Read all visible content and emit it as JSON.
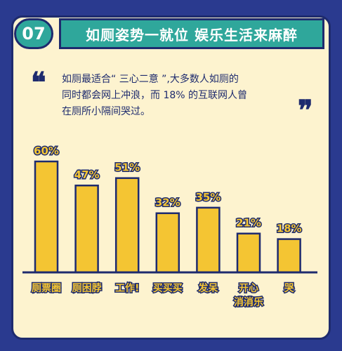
{
  "header": {
    "number": "07",
    "title": "如厕姿势一就位 娱乐生活来麻醉"
  },
  "description": {
    "lines": [
      "如厕最适合“ 三心二意 ”,大多数人如厕的",
      "同时都会网上冲浪，而 18% 的互联网人曾",
      "在厕所小隔间哭过。"
    ]
  },
  "colors": {
    "background": "#2a3a8f",
    "card": "#fdf3cf",
    "accent": "#2fa79b",
    "bar": "#f4c533",
    "outline": "#1e2b6e"
  },
  "chart_data": {
    "type": "bar",
    "categories": [
      "厕票圈",
      "厕困脖",
      "工作!",
      "买买买",
      "发呆",
      "开心\n消消乐",
      "哭"
    ],
    "values": [
      60,
      47,
      51,
      32,
      35,
      21,
      18
    ],
    "value_labels": [
      "60%",
      "47%",
      "51%",
      "32%",
      "35%",
      "21%",
      "18%"
    ],
    "ylim": [
      0,
      60
    ],
    "grid": false
  }
}
